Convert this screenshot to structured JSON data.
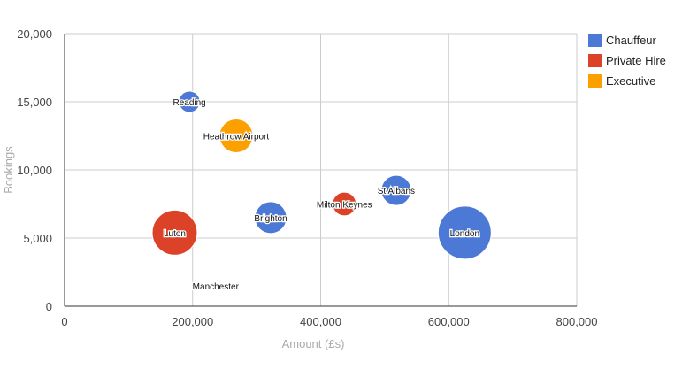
{
  "chart_data": {
    "type": "scatter",
    "subtype": "bubble",
    "xlabel": "Amount (£s)",
    "ylabel": "Bookings",
    "xlim": [
      0,
      800000
    ],
    "ylim": [
      0,
      20000
    ],
    "x_ticks": [
      0,
      200000,
      400000,
      600000,
      800000
    ],
    "x_tick_labels": [
      "0",
      "200,000",
      "400,000",
      "600,000",
      "800,000"
    ],
    "y_ticks": [
      0,
      5000,
      10000,
      15000,
      20000
    ],
    "y_tick_labels": [
      "0",
      "5,000",
      "10,000",
      "15,000",
      "20,000"
    ],
    "grid": true,
    "legend_position": "right",
    "series": [
      {
        "name": "Chauffeur",
        "color": "#4c78d6"
      },
      {
        "name": "Private Hire",
        "color": "#dc4228"
      },
      {
        "name": "Executive",
        "color": "#fca000"
      }
    ],
    "points": [
      {
        "label": "Reading",
        "x": 195000,
        "y": 15000,
        "series": "Chauffeur",
        "size": 12000
      },
      {
        "label": "Heathrow Airport",
        "x": 268000,
        "y": 12500,
        "series": "Executive",
        "size": 30000
      },
      {
        "label": "St Albans",
        "x": 518000,
        "y": 8500,
        "series": "Chauffeur",
        "size": 24000
      },
      {
        "label": "Milton Keynes",
        "x": 437000,
        "y": 7500,
        "series": "Private Hire",
        "size": 15000
      },
      {
        "label": "Brighton",
        "x": 322000,
        "y": 6500,
        "series": "Chauffeur",
        "size": 27000
      },
      {
        "label": "Luton",
        "x": 172000,
        "y": 5400,
        "series": "Private Hire",
        "size": 54000
      },
      {
        "label": "London",
        "x": 625000,
        "y": 5400,
        "series": "Chauffeur",
        "size": 75000
      },
      {
        "label": "Manchester",
        "x": 236000,
        "y": 1500,
        "series": "Chauffeur",
        "size": 0
      }
    ]
  }
}
